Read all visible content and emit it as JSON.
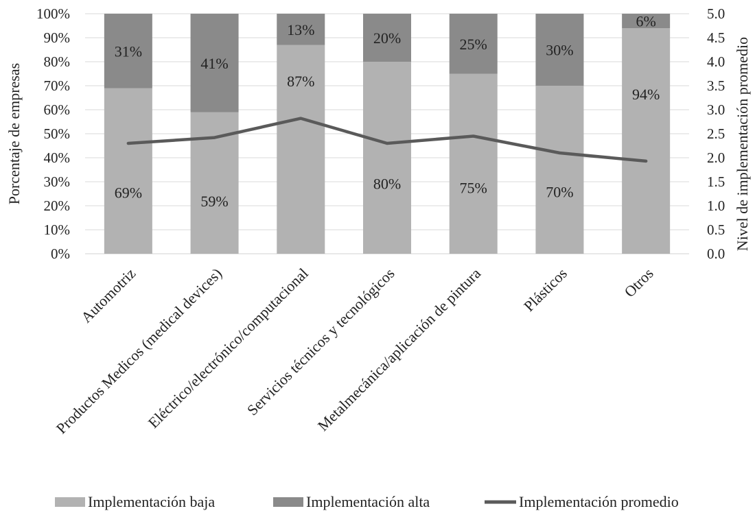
{
  "chart_data": {
    "type": "bar",
    "stacked": true,
    "categories": [
      "Automotriz",
      "Productos Medicos (medical devices)",
      "Eléctrico/electrónico/computacional",
      "Servicios técnicos y tecnológicos",
      "Metalmecánica/aplicación de pintura",
      "Plásticos",
      "Otros"
    ],
    "series": [
      {
        "name": "Implementación baja",
        "type": "bar",
        "color": "#b2b2b2",
        "values": [
          69,
          59,
          87,
          80,
          75,
          70,
          94
        ],
        "labels": [
          "69%",
          "59%",
          "87%",
          "80%",
          "75%",
          "70%",
          "94%"
        ]
      },
      {
        "name": "Implementación alta",
        "type": "bar",
        "color": "#8a8a8a",
        "values": [
          31,
          41,
          13,
          20,
          25,
          30,
          6
        ],
        "labels": [
          "31%",
          "41%",
          "13%",
          "20%",
          "25%",
          "30%",
          "6%"
        ]
      },
      {
        "name": "Implementación promedio",
        "type": "line",
        "axis": "right",
        "color": "#5a5a5a",
        "values": [
          2.3,
          2.42,
          2.82,
          2.3,
          2.45,
          2.1,
          1.93
        ]
      }
    ],
    "ylabel": "Porcentaje de empresas",
    "y2label": "Nivel de implementación promedio",
    "ylim": [
      0,
      100
    ],
    "y2lim": [
      0,
      5
    ],
    "yticks": [
      "0%",
      "10%",
      "20%",
      "30%",
      "40%",
      "50%",
      "60%",
      "70%",
      "80%",
      "90%",
      "100%"
    ],
    "y2ticks": [
      "0.0",
      "0.5",
      "1.0",
      "1.5",
      "2.0",
      "2.5",
      "3.0",
      "3.5",
      "4.0",
      "4.5",
      "5.0"
    ],
    "grid": true,
    "legend": "bottom"
  }
}
